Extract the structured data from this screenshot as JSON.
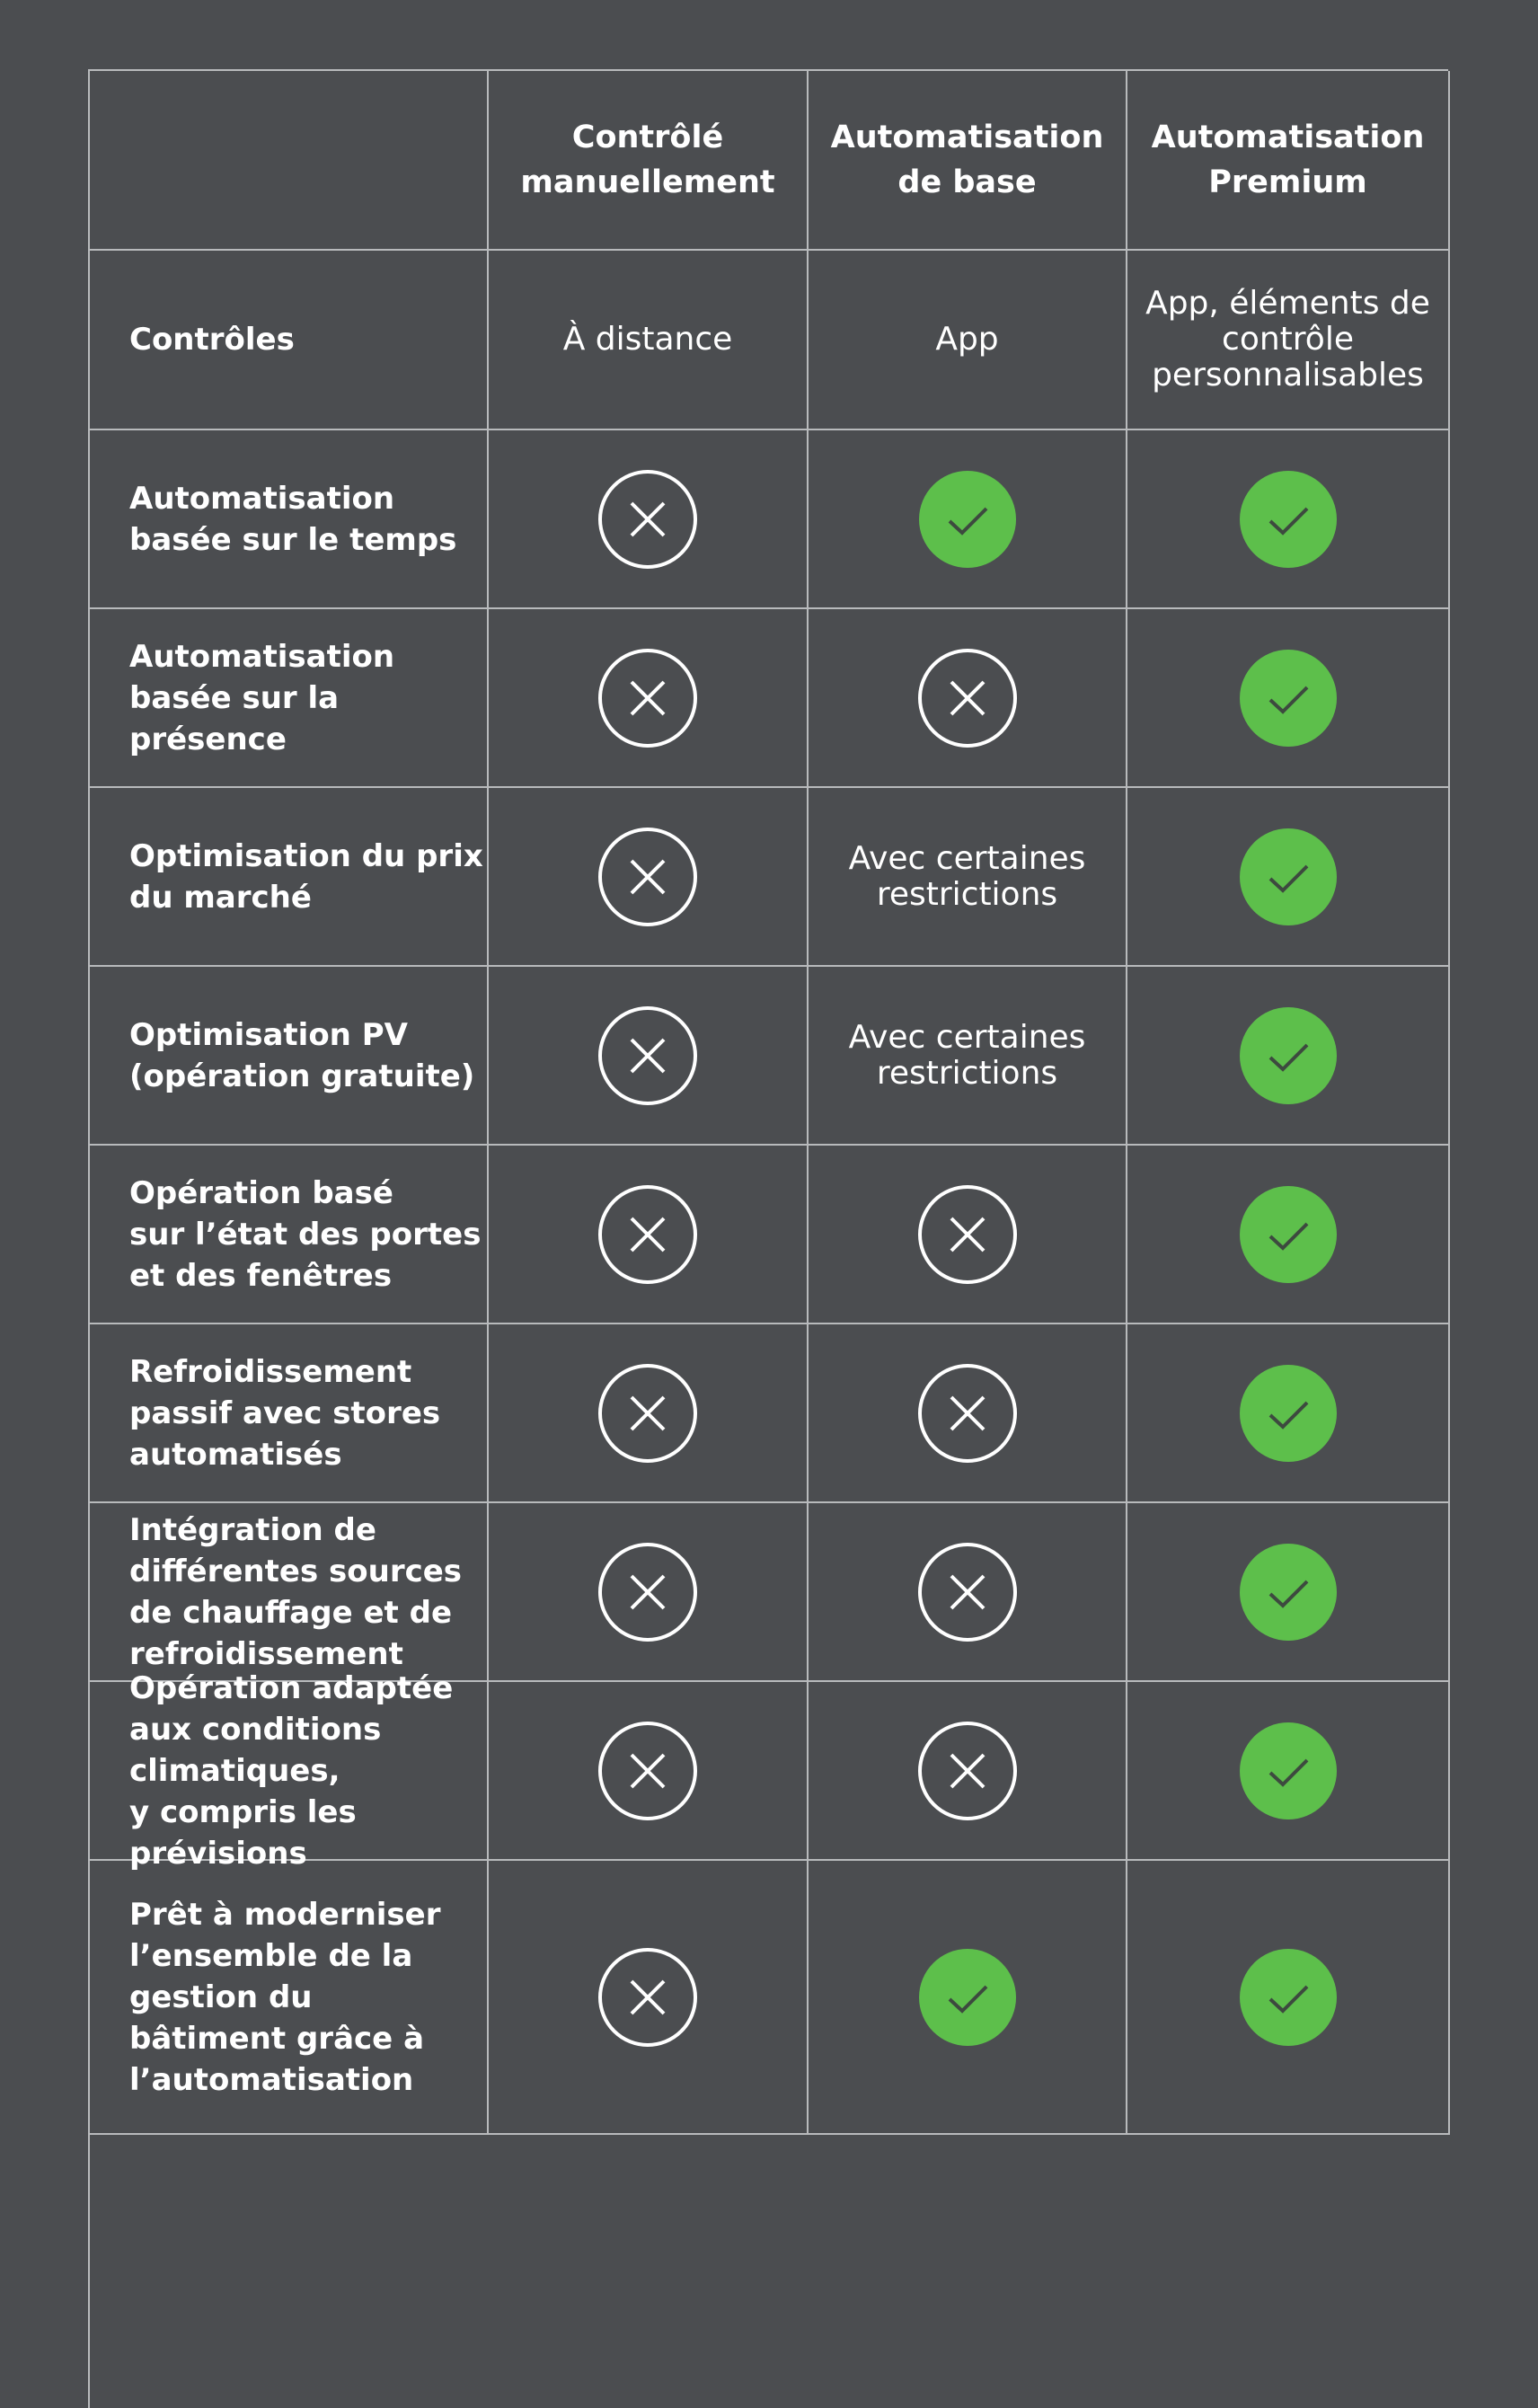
{
  "table": {
    "header": [
      "Contrôlé\nmanuellement",
      "Automatisation\nde base",
      "Automatisation\nPremium"
    ],
    "rows": [
      {
        "label": "Contrôles",
        "cells": [
          "À distance",
          "App",
          "App, éléments de\ncontrôle\npersonnalisables"
        ]
      },
      {
        "label": "Automatisation\nbasée sur le temps",
        "cells": [
          false,
          true,
          true
        ]
      },
      {
        "label": "Automatisation\nbasée sur la\nprésence",
        "cells": [
          false,
          false,
          true
        ]
      },
      {
        "label": "Optimisation du prix\ndu marché",
        "cells": [
          false,
          "Avec certaines\nrestrictions",
          true
        ]
      },
      {
        "label": "Optimisation PV\n(opération gratuite)",
        "cells": [
          false,
          "Avec certaines\nrestrictions",
          true
        ]
      },
      {
        "label": "Opération basé\nsur l’état des portes\net des fenêtres",
        "cells": [
          false,
          false,
          true
        ]
      },
      {
        "label": "Refroidissement\npassif avec stores\nautomatisés",
        "cells": [
          false,
          false,
          true
        ]
      },
      {
        "label": "Intégration de\ndifférentes sources\nde chauffage et de\nrefroidissement",
        "cells": [
          false,
          false,
          true
        ]
      },
      {
        "label": "Opération adaptée\naux conditions\nclimatiques,\ny compris les\nprévisions",
        "cells": [
          false,
          false,
          true
        ]
      },
      {
        "label": "Prêt à moderniser\nl’ensemble de la\ngestion du\nbâtiment grâce à\nl’automatisation",
        "cells": [
          false,
          true,
          true
        ]
      }
    ]
  }
}
